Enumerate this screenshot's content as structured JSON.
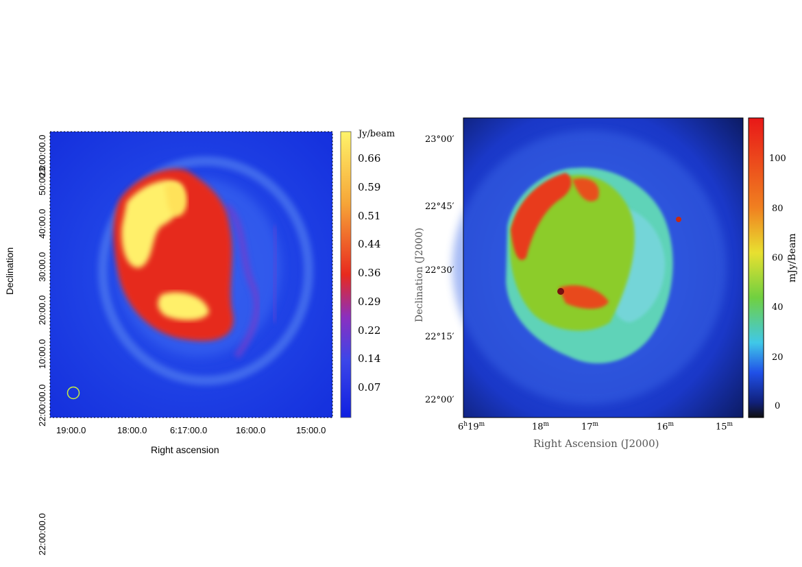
{
  "left": {
    "y_label": "Declination",
    "x_label": "Right ascension",
    "x_ticks": [
      "19:00.0",
      "18:00.0",
      "6:17:00.0",
      "16:00.0",
      "15:00.0"
    ],
    "y_ticks": [
      "22:00:00.0",
      "10:00.0",
      "20:00.0",
      "30:00.0",
      "40:00.0",
      "50:00.0",
      "23:00:00.0"
    ],
    "colorbar": {
      "unit": "Jy/beam",
      "ticks": [
        "0.66",
        "0.59",
        "0.51",
        "0.44",
        "0.36",
        "0.29",
        "0.22",
        "0.14",
        "0.07"
      ]
    },
    "beam_color": "#c8f040"
  },
  "right": {
    "y_label": "Declination (J2000)",
    "x_label": "Right Ascension (J2000)",
    "x_ticks": [
      {
        "h": "6",
        "hs": "h",
        "m": "19",
        "ms": "m"
      },
      {
        "h": "",
        "hs": "",
        "m": "18",
        "ms": "m"
      },
      {
        "h": "",
        "hs": "",
        "m": "17",
        "ms": "m"
      },
      {
        "h": "",
        "hs": "",
        "m": "16",
        "ms": "m"
      },
      {
        "h": "",
        "hs": "",
        "m": "15",
        "ms": "m"
      }
    ],
    "x_ticks_display": [
      "18",
      "17",
      "16",
      "15"
    ],
    "y_ticks": [
      "23°00′",
      "22°45′",
      "22°30′",
      "22°15′",
      "22°00′"
    ],
    "colorbar": {
      "unit": "mJy/Beam",
      "ticks": [
        "100",
        "80",
        "60",
        "40",
        "20",
        "0"
      ]
    }
  },
  "colors": {
    "bg_blue": "#1a3fe0",
    "red": "#e8281a",
    "yellow": "#fff36a"
  }
}
